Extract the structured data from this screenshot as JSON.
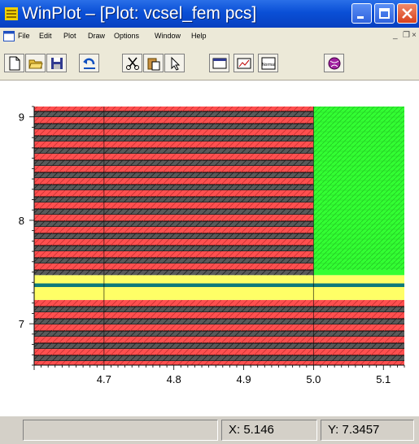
{
  "window": {
    "title": "WinPlot – [Plot: vcsel_fem pcs]",
    "accent": "#0a4fd6"
  },
  "menu": {
    "items": [
      {
        "label": "File"
      },
      {
        "label": "Edit"
      },
      {
        "label": "Plot"
      },
      {
        "label": "Draw"
      },
      {
        "label": "Options"
      },
      {
        "label": "Window"
      },
      {
        "label": "Help"
      }
    ],
    "mdi_minimize": "_",
    "mdi_restore": "̅̅□",
    "mdi_close": "×"
  },
  "toolbar": {
    "tools": [
      {
        "name": "new-icon"
      },
      {
        "name": "open-folder-icon"
      },
      {
        "name": "save-icon"
      },
      {
        "name": "undo-icon"
      },
      {
        "name": "cut-icon"
      },
      {
        "name": "paste-icon"
      },
      {
        "name": "pointer-icon"
      },
      {
        "name": "window-icon"
      },
      {
        "name": "plot-window-icon"
      },
      {
        "name": "normal-view-icon",
        "label": "Normal"
      },
      {
        "name": "globe-icon"
      }
    ]
  },
  "chart_data": {
    "type": "heatmap",
    "title": "",
    "xlabel": "",
    "ylabel": "",
    "xlim": [
      4.6,
      5.13
    ],
    "ylim": [
      6.6,
      9.1
    ],
    "x_ticks": [
      "4.7",
      "4.8",
      "4.9",
      "5.0",
      "5.1"
    ],
    "y_ticks": [
      "7",
      "8",
      "9"
    ],
    "regions": [
      {
        "name": "",
        "x": [
          4.6,
          5.13
        ],
        "y": [
          6.6,
          7.23
        ],
        "pattern": "red-black-stripes",
        "color": "#ff5050"
      },
      {
        "name": "",
        "x": [
          4.6,
          5.13
        ],
        "y": [
          7.23,
          7.355
        ],
        "pattern": "solid",
        "color": "#ffff66"
      },
      {
        "name": "",
        "x": [
          4.6,
          5.13
        ],
        "y": [
          7.355,
          7.39
        ],
        "pattern": "solid",
        "color": "#0d7a7a"
      },
      {
        "name": "",
        "x": [
          4.6,
          5.13
        ],
        "y": [
          7.39,
          7.47
        ],
        "pattern": "solid",
        "color": "#ffff66"
      },
      {
        "name": "",
        "x": [
          5.0,
          5.13
        ],
        "y": [
          7.47,
          7.52
        ],
        "pattern": "solid",
        "color": "#33ff33"
      },
      {
        "name": "",
        "x": [
          4.6,
          5.0
        ],
        "y": [
          7.47,
          9.1
        ],
        "pattern": "red-black-stripes",
        "color": "#ff5050"
      },
      {
        "name": "",
        "x": [
          5.0,
          5.13
        ],
        "y": [
          7.52,
          9.1
        ],
        "pattern": "green-hatch",
        "color": "#33ff33"
      }
    ],
    "grid": true,
    "legend": "none"
  },
  "status": {
    "left": "",
    "x_readout": "X: 5.146",
    "y_readout": "Y: 7.3457"
  }
}
